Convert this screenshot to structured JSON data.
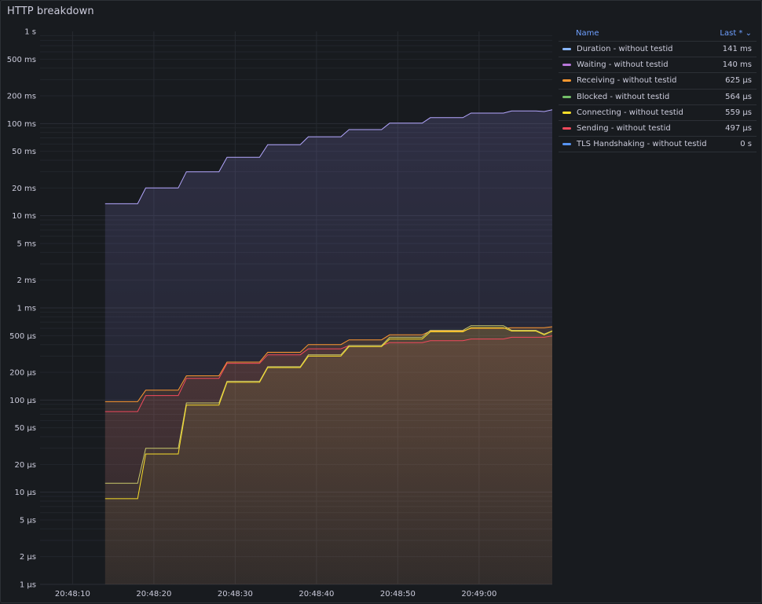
{
  "panel": {
    "title": "HTTP breakdown"
  },
  "legend": {
    "name_header": "Name",
    "last_header": "Last * ⌄",
    "items": [
      {
        "name": "Duration - without testid",
        "value": "141 ms",
        "color": "#8ab8ff"
      },
      {
        "name": "Waiting - without testid",
        "value": "140 ms",
        "color": "#b877d9"
      },
      {
        "name": "Receiving - without testid",
        "value": "625 µs",
        "color": "#ff9830"
      },
      {
        "name": "Blocked - without testid",
        "value": "564 µs",
        "color": "#73bf69"
      },
      {
        "name": "Connecting - without testid",
        "value": "559 µs",
        "color": "#fade2a"
      },
      {
        "name": "Sending - without testid",
        "value": "497 µs",
        "color": "#f2495c"
      },
      {
        "name": "TLS Handshaking - without testid",
        "value": "0 s",
        "color": "#5794f2"
      }
    ]
  },
  "chart_data": {
    "type": "line",
    "scale": "log",
    "y_ticks": [
      "1 s",
      "500 ms",
      "200 ms",
      "100 ms",
      "50 ms",
      "20 ms",
      "10 ms",
      "5 ms",
      "2 ms",
      "1 ms",
      "500 µs",
      "200 µs",
      "100 µs",
      "50 µs",
      "20 µs",
      "10 µs",
      "5 µs",
      "2 µs",
      "1 µs"
    ],
    "y_tick_values_s": [
      1,
      0.5,
      0.2,
      0.1,
      0.05,
      0.02,
      0.01,
      0.005,
      0.002,
      0.001,
      0.0005,
      0.0002,
      0.0001,
      5e-05,
      2e-05,
      1e-05,
      5e-06,
      2e-06,
      1e-06
    ],
    "ylim_s": [
      1e-06,
      1
    ],
    "x_ticks": [
      "20:48:10",
      "20:48:20",
      "20:48:30",
      "20:48:40",
      "20:48:50",
      "20:49:00"
    ],
    "x_tick_values": [
      "20:48:10",
      "20:48:20",
      "20:48:30",
      "20:48:40",
      "20:48:50",
      "20:49:00"
    ],
    "xlim": [
      "20:48:06",
      "20:49:09"
    ],
    "series": [
      {
        "name": "Waiting - without testid",
        "color": "#b4a7ff",
        "fill": true,
        "x": [
          "20:48:14",
          "20:48:18",
          "20:48:19",
          "20:48:23",
          "20:48:24",
          "20:48:28",
          "20:48:29",
          "20:48:33",
          "20:48:34",
          "20:48:38",
          "20:48:39",
          "20:48:43",
          "20:48:44",
          "20:48:48",
          "20:48:49",
          "20:48:53",
          "20:48:54",
          "20:48:58",
          "20:48:59",
          "20:49:03",
          "20:49:04",
          "20:49:07",
          "20:49:08",
          "20:49:09"
        ],
        "y": [
          0.0135,
          0.0135,
          0.02,
          0.02,
          0.03,
          0.03,
          0.043,
          0.043,
          0.059,
          0.059,
          0.072,
          0.072,
          0.086,
          0.086,
          0.101,
          0.101,
          0.116,
          0.116,
          0.13,
          0.13,
          0.137,
          0.137,
          0.135,
          0.141
        ]
      },
      {
        "name": "Receiving - without testid",
        "color": "#ff9830",
        "fill": true,
        "x": [
          "20:48:14",
          "20:48:18",
          "20:48:19",
          "20:48:23",
          "20:48:24",
          "20:48:28",
          "20:48:29",
          "20:48:33",
          "20:48:34",
          "20:48:38",
          "20:48:39",
          "20:48:43",
          "20:48:44",
          "20:48:48",
          "20:48:49",
          "20:48:53",
          "20:48:54",
          "20:48:58",
          "20:48:59",
          "20:49:03",
          "20:49:04",
          "20:49:08",
          "20:49:09"
        ],
        "y": [
          9.6e-05,
          9.6e-05,
          0.000128,
          0.000128,
          0.000183,
          0.000183,
          0.000258,
          0.000258,
          0.00033,
          0.00033,
          0.0004,
          0.0004,
          0.00045,
          0.00045,
          0.00051,
          0.00051,
          0.00056,
          0.00056,
          0.0006,
          0.0006,
          0.00061,
          0.00061,
          0.000625
        ]
      },
      {
        "name": "Sending - without testid",
        "color": "#f2495c",
        "fill": true,
        "x": [
          "20:48:14",
          "20:48:18",
          "20:48:19",
          "20:48:23",
          "20:48:24",
          "20:48:28",
          "20:48:29",
          "20:48:33",
          "20:48:34",
          "20:48:38",
          "20:48:39",
          "20:48:43",
          "20:48:44",
          "20:48:48",
          "20:48:49",
          "20:48:53",
          "20:48:54",
          "20:48:58",
          "20:48:59",
          "20:49:03",
          "20:49:04",
          "20:49:08",
          "20:49:09"
        ],
        "y": [
          7.5e-05,
          7.5e-05,
          0.000112,
          0.000112,
          0.000172,
          0.000172,
          0.00025,
          0.00025,
          0.00031,
          0.00031,
          0.00036,
          0.00036,
          0.00039,
          0.00039,
          0.00042,
          0.00042,
          0.00044,
          0.00044,
          0.00046,
          0.00046,
          0.00048,
          0.00048,
          0.000497
        ]
      },
      {
        "name": "Blocked - without testid",
        "color": "#c8c86a",
        "fill": true,
        "x": [
          "20:48:14",
          "20:48:18",
          "20:48:19",
          "20:48:23",
          "20:48:24",
          "20:48:28",
          "20:48:29",
          "20:48:33",
          "20:48:34",
          "20:48:38",
          "20:48:39",
          "20:48:43",
          "20:48:44",
          "20:48:48",
          "20:48:49",
          "20:48:53",
          "20:48:54",
          "20:48:58",
          "20:48:59",
          "20:49:03",
          "20:49:04",
          "20:49:07",
          "20:49:08",
          "20:49:09"
        ],
        "y": [
          1.25e-05,
          1.25e-05,
          3e-05,
          3e-05,
          9.3e-05,
          9.3e-05,
          0.00016,
          0.00016,
          0.00023,
          0.00023,
          0.00031,
          0.00031,
          0.00039,
          0.00039,
          0.00048,
          0.00048,
          0.00057,
          0.00057,
          0.00064,
          0.00064,
          0.00057,
          0.00057,
          0.00052,
          0.000564
        ]
      },
      {
        "name": "Connecting - without testid",
        "color": "#fade2a",
        "fill": true,
        "x": [
          "20:48:14",
          "20:48:18",
          "20:48:19",
          "20:48:23",
          "20:48:24",
          "20:48:28",
          "20:48:29",
          "20:48:33",
          "20:48:34",
          "20:48:38",
          "20:48:39",
          "20:48:43",
          "20:48:44",
          "20:48:48",
          "20:48:49",
          "20:48:53",
          "20:48:54",
          "20:48:58",
          "20:48:59",
          "20:49:03",
          "20:49:04",
          "20:49:07",
          "20:49:08",
          "20:49:09"
        ],
        "y": [
          8.5e-06,
          8.5e-06,
          2.6e-05,
          2.6e-05,
          8.8e-05,
          8.8e-05,
          0.000156,
          0.000156,
          0.000225,
          0.000225,
          0.0003,
          0.0003,
          0.00038,
          0.00038,
          0.00046,
          0.00046,
          0.00055,
          0.00055,
          0.00061,
          0.00061,
          0.00056,
          0.00056,
          0.00051,
          0.000559
        ]
      }
    ]
  }
}
